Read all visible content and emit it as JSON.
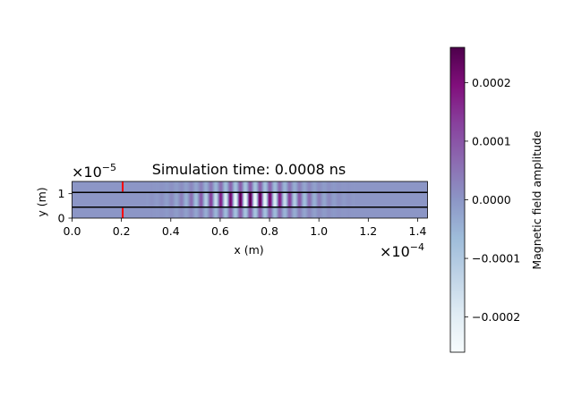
{
  "chart_data": {
    "type": "heatmap",
    "title": "Simulation time: 0.0008 ns",
    "xlabel": "x (m)",
    "ylabel": "y (m)",
    "x_scale_label": "×10",
    "x_scale_exp": "−4",
    "y_scale_label": "×10",
    "y_scale_exp": "−5",
    "xlim": [
      0.0,
      1.44
    ],
    "ylim": [
      0.0,
      1.5
    ],
    "xticks": [
      0.0,
      0.2,
      0.4,
      0.6,
      0.8,
      1.0,
      1.2,
      1.4
    ],
    "xtick_labels": [
      "0.0",
      "0.2",
      "0.4",
      "0.6",
      "0.8",
      "1.0",
      "1.2",
      "1.4"
    ],
    "yticks": [
      0,
      1
    ],
    "ytick_labels": [
      "0",
      "1"
    ],
    "waveguide_boundaries_y": [
      0.45,
      1.05
    ],
    "source_x": 0.205,
    "wave_packet": {
      "center_x": 0.72,
      "width_x": 0.2,
      "x_range": [
        0.3,
        1.15
      ],
      "peak_amplitude": 0.00026,
      "wavelength_x": 0.04
    },
    "colorbar": {
      "label": "Magnetic field amplitude",
      "range": [
        -0.00026,
        0.00026
      ],
      "ticks": [
        0.0002,
        0.0001,
        0.0,
        -0.0001,
        -0.0002
      ],
      "tick_labels": [
        "0.0002",
        "0.0001",
        "0.0000",
        "−0.0001",
        "−0.0002"
      ],
      "colormap": "BuPu",
      "colors": [
        "#f7fcfd",
        "#e0ecf4",
        "#bfd3e6",
        "#9ebcda",
        "#8c96c6",
        "#8c6bb1",
        "#88419d",
        "#810f7c",
        "#4d004b"
      ]
    },
    "colors": {
      "waveguide_line": "#000000",
      "source_line": "#ff0000",
      "background_field": "#8c96c6"
    }
  }
}
